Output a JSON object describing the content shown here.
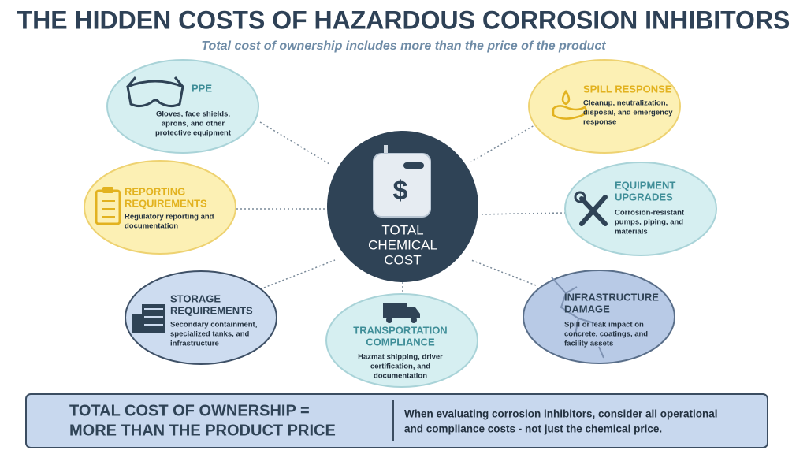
{
  "header": {
    "title": "THE HIDDEN COSTS OF HAZARDOUS CORROSION INHIBITORS",
    "subtitle": "Total cost of ownership includes more than the price of the product"
  },
  "center": {
    "lines": [
      "TOTAL",
      "CHEMICAL",
      "COST"
    ]
  },
  "nodes": [
    {
      "title": [
        "PPE"
      ],
      "description": [
        "Gloves, face shields,",
        "aprons, and other",
        "protective equipment"
      ]
    },
    {
      "title": [
        "REPORTING",
        "REQUIREMENTS"
      ],
      "description": [
        "Regulatory reporting and",
        "documentation"
      ]
    },
    {
      "title": [
        "STORAGE",
        "REQUIREMENTS"
      ],
      "description": [
        "Secondary containment,",
        "specialized tanks, and",
        "infrastructure"
      ]
    },
    {
      "title": [
        "TRANSPORTATION",
        "COMPLIANCE"
      ],
      "description": [
        "Hazmat shipping, driver",
        "certification, and",
        "documentation"
      ]
    },
    {
      "title": [
        "INFRASTRUCTURE",
        "DAMAGE"
      ],
      "description": [
        "Spill or leak impact on",
        "concrete, coatings, and",
        "facility assets"
      ]
    },
    {
      "title": [
        "EQUIPMENT",
        "UPGRADES"
      ],
      "description": [
        "Corrosion-resistant",
        "pumps, piping, and",
        "materials"
      ]
    },
    {
      "title": [
        "SPILL RESPONSE"
      ],
      "description": [
        "Cleanup, neutralization,",
        "disposal, and emergency",
        "response"
      ]
    }
  ],
  "footer": {
    "headline": [
      "TOTAL COST OF OWNERSHIP =",
      "MORE THAN THE PRODUCT PRICE"
    ],
    "message": [
      "When evaluating corrosion inhibitors, consider all operational",
      "and compliance costs - not just the chemical price."
    ]
  }
}
